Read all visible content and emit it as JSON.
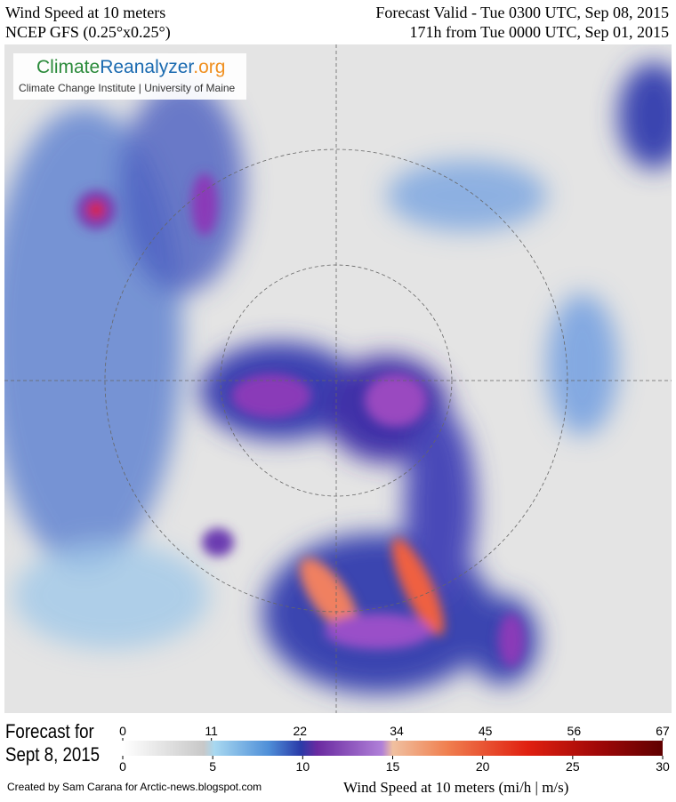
{
  "header": {
    "left": [
      "Wind Speed at 10 meters",
      "NCEP GFS (0.25°x0.25°)"
    ],
    "right": [
      "Forecast Valid - Tue 0300 UTC, Sep 08, 2015",
      "171h from Tue 0000 UTC, Sep 01, 2015"
    ]
  },
  "logo": {
    "parts": [
      "Climate",
      "Reanalyzer",
      ".org"
    ],
    "subtitle": "Climate Change Institute | University of Maine"
  },
  "footer": {
    "forecast": [
      "Forecast for",
      "Sept 8, 2015"
    ],
    "legend_title": "Wind Speed at 10 meters (mi/h | m/s)",
    "credit": "Created by Sam Carana for Arctic-news.blogspot.com"
  },
  "colorbar": {
    "mph_lim": [
      0,
      67
    ],
    "mph_ticks": [
      0,
      11,
      22,
      34,
      45,
      56,
      67
    ],
    "ms_lim": [
      0,
      30
    ],
    "ms_ticks": [
      0,
      5,
      10,
      15,
      20,
      25,
      30
    ]
  }
}
